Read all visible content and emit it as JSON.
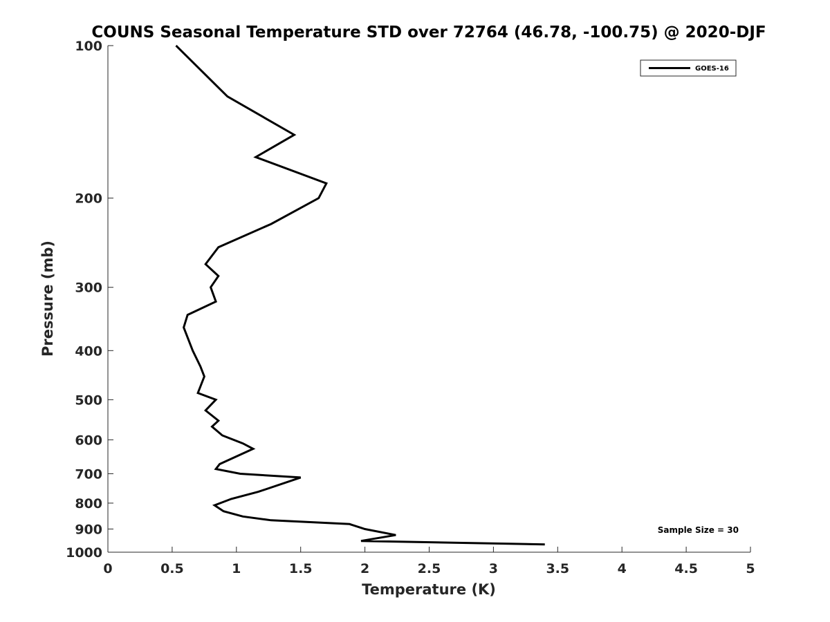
{
  "chart_data": {
    "type": "line",
    "title": "COUNS Seasonal Temperature STD over 72764 (46.78, -100.75) @ 2020-DJF",
    "xlabel": "Temperature (K)",
    "ylabel": "Pressure (mb)",
    "xlim": [
      0,
      5
    ],
    "ylim": [
      100,
      1000
    ],
    "y_scale": "log",
    "y_reversed": true,
    "x_ticks": [
      0,
      0.5,
      1,
      1.5,
      2,
      2.5,
      3,
      3.5,
      4,
      4.5,
      5
    ],
    "x_tick_labels": [
      "0",
      "0.5",
      "1",
      "1.5",
      "2",
      "2.5",
      "3",
      "3.5",
      "4",
      "4.5",
      "5"
    ],
    "y_ticks": [
      100,
      200,
      300,
      400,
      500,
      600,
      700,
      800,
      900,
      1000
    ],
    "y_tick_labels": [
      "100",
      "200",
      "300",
      "400",
      "500",
      "600",
      "700",
      "800",
      "900",
      "1000"
    ],
    "grid": false,
    "legend_position": "top-right",
    "annotation": "Sample Size = 30",
    "series": [
      {
        "name": "GOES-16",
        "color": "#000000",
        "points": [
          {
            "t": 0.53,
            "p": 100
          },
          {
            "t": 0.93,
            "p": 126
          },
          {
            "t": 1.45,
            "p": 150
          },
          {
            "t": 1.15,
            "p": 166
          },
          {
            "t": 1.7,
            "p": 187
          },
          {
            "t": 1.64,
            "p": 200
          },
          {
            "t": 1.27,
            "p": 225
          },
          {
            "t": 0.86,
            "p": 250
          },
          {
            "t": 0.76,
            "p": 270
          },
          {
            "t": 0.86,
            "p": 285
          },
          {
            "t": 0.8,
            "p": 300
          },
          {
            "t": 0.84,
            "p": 320
          },
          {
            "t": 0.62,
            "p": 340
          },
          {
            "t": 0.59,
            "p": 360
          },
          {
            "t": 0.66,
            "p": 400
          },
          {
            "t": 0.72,
            "p": 430
          },
          {
            "t": 0.75,
            "p": 450
          },
          {
            "t": 0.7,
            "p": 485
          },
          {
            "t": 0.84,
            "p": 500
          },
          {
            "t": 0.76,
            "p": 525
          },
          {
            "t": 0.86,
            "p": 550
          },
          {
            "t": 0.81,
            "p": 565
          },
          {
            "t": 0.89,
            "p": 588
          },
          {
            "t": 1.05,
            "p": 610
          },
          {
            "t": 1.13,
            "p": 625
          },
          {
            "t": 0.87,
            "p": 670
          },
          {
            "t": 0.84,
            "p": 685
          },
          {
            "t": 1.03,
            "p": 700
          },
          {
            "t": 1.5,
            "p": 712
          },
          {
            "t": 1.17,
            "p": 760
          },
          {
            "t": 0.96,
            "p": 785
          },
          {
            "t": 0.83,
            "p": 808
          },
          {
            "t": 0.9,
            "p": 830
          },
          {
            "t": 1.05,
            "p": 850
          },
          {
            "t": 1.27,
            "p": 865
          },
          {
            "t": 1.88,
            "p": 880
          },
          {
            "t": 2.0,
            "p": 900
          },
          {
            "t": 2.24,
            "p": 925
          },
          {
            "t": 1.97,
            "p": 950
          },
          {
            "t": 3.4,
            "p": 965
          }
        ]
      }
    ]
  }
}
